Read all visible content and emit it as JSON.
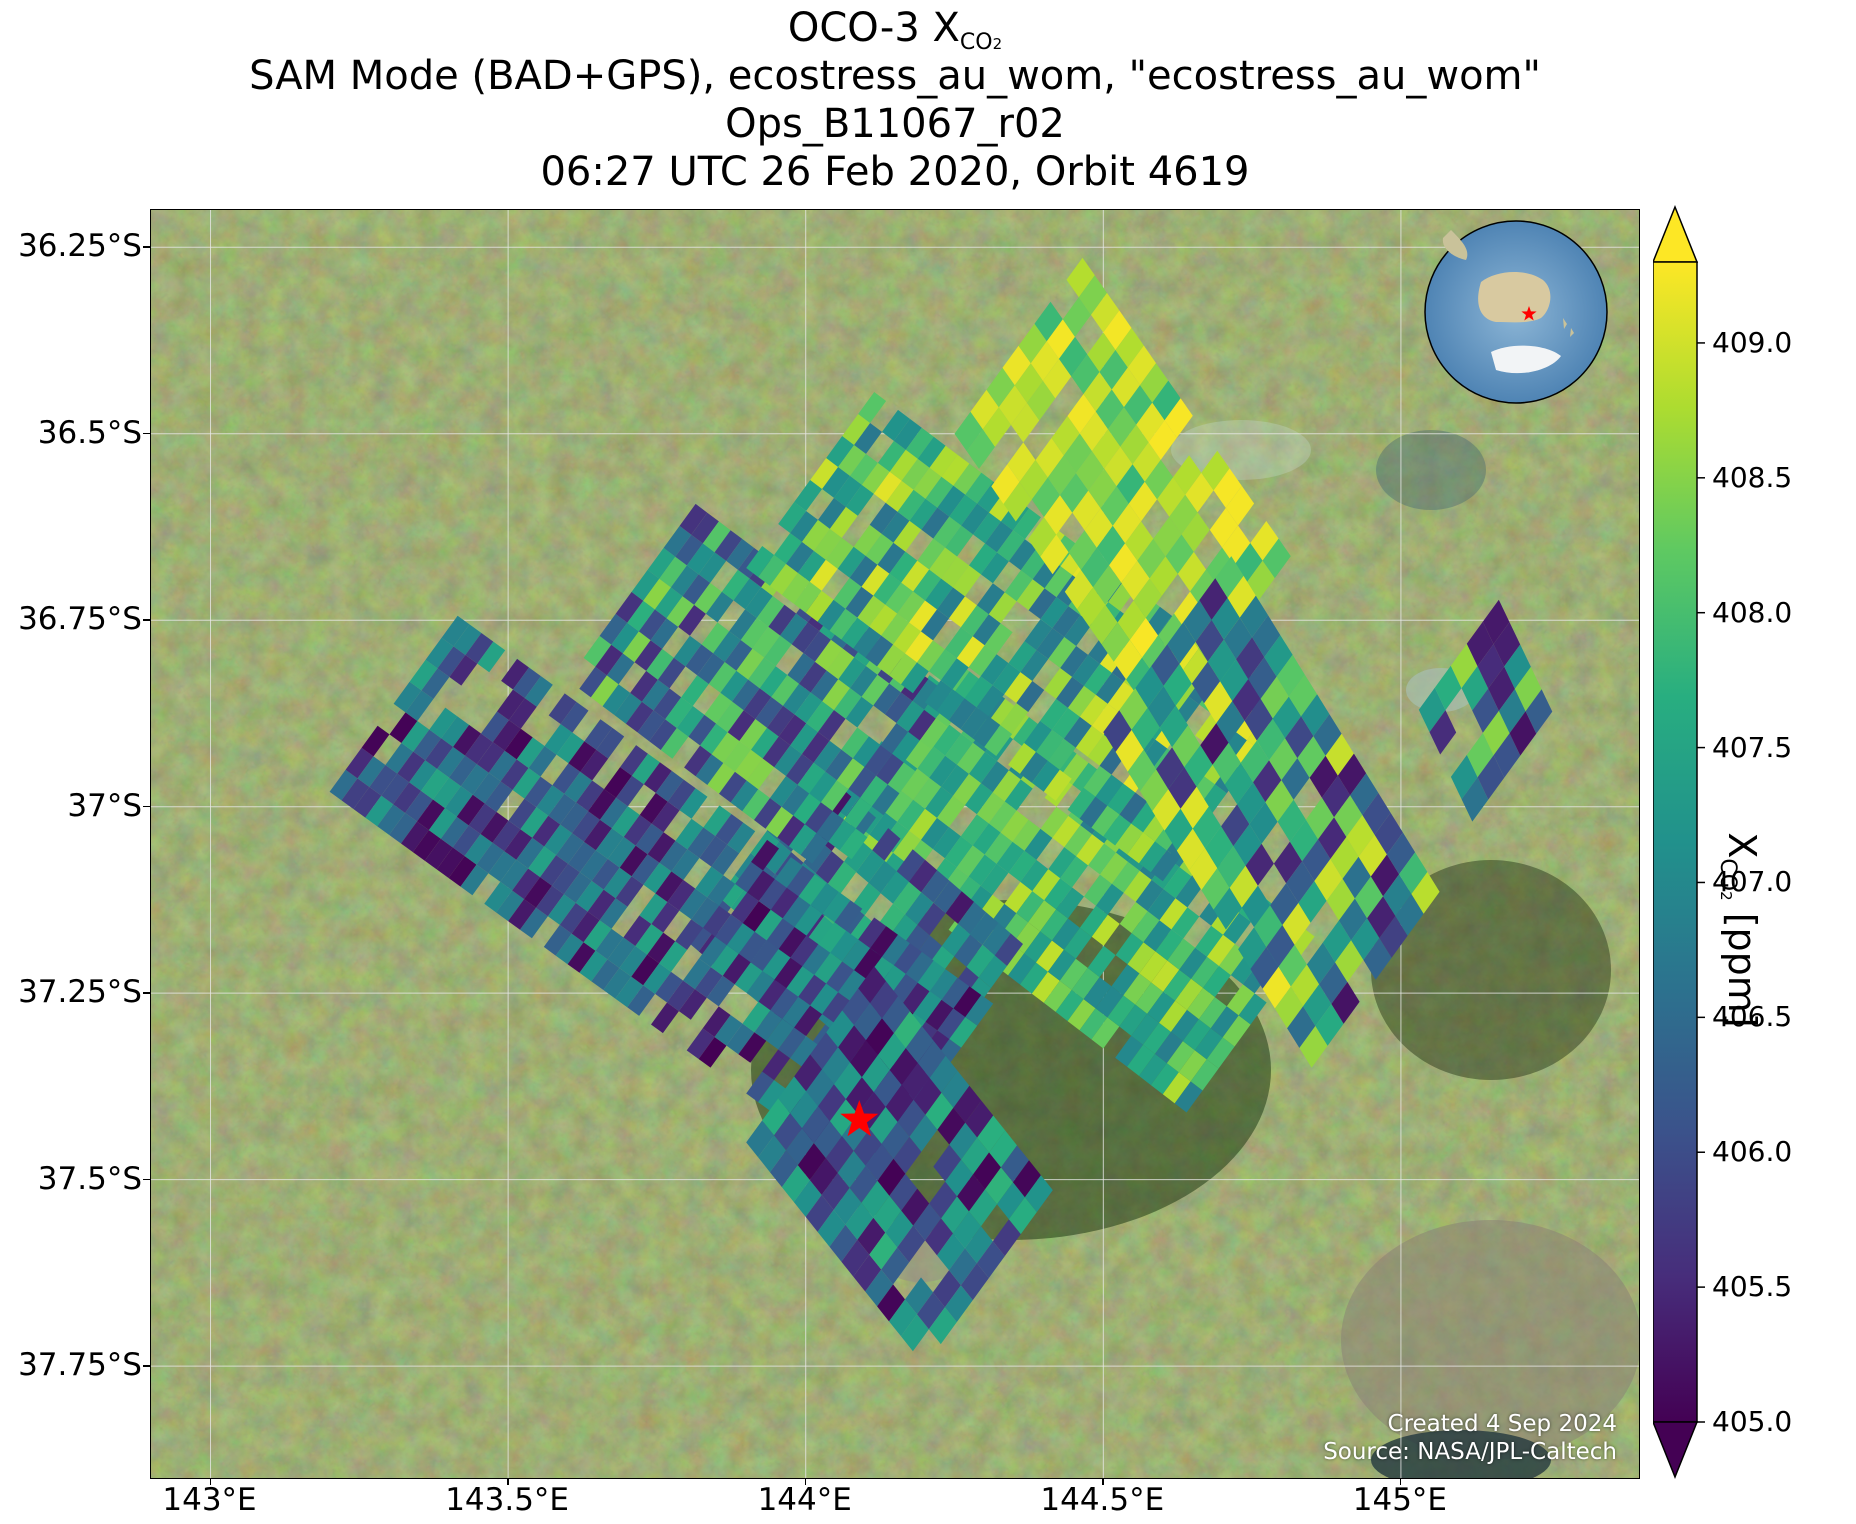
{
  "title": {
    "line1_prefix": "OCO-3 X",
    "line1_sub": "CO",
    "line1_sub2": "2",
    "line2": "SAM Mode (BAD+GPS), ecostress_au_wom, \"ecostress_au_wom\"",
    "line3": "Ops_B11067_r02",
    "line4": "06:27 UTC 26 Feb 2020, Orbit 4619"
  },
  "map": {
    "lon_range": [
      142.9,
      145.4
    ],
    "lat_range": [
      -37.9,
      -36.2
    ],
    "lon_ticks": [
      {
        "value": 143.0,
        "label": "143°E"
      },
      {
        "value": 143.5,
        "label": "143.5°E"
      },
      {
        "value": 144.0,
        "label": "144°E"
      },
      {
        "value": 144.5,
        "label": "144.5°E"
      },
      {
        "value": 145.0,
        "label": "145°E"
      }
    ],
    "lat_ticks": [
      {
        "value": -36.25,
        "label": "36.25°S"
      },
      {
        "value": -36.5,
        "label": "36.5°S"
      },
      {
        "value": -36.75,
        "label": "36.75°S"
      },
      {
        "value": -37.0,
        "label": "37°S"
      },
      {
        "value": -37.25,
        "label": "37.25°S"
      },
      {
        "value": -37.5,
        "label": "37.5°S"
      },
      {
        "value": -37.75,
        "label": "37.75°S"
      }
    ],
    "target_marker": {
      "lon": 144.09,
      "lat": -37.42,
      "color": "#ff0000",
      "shape": "star-icon"
    },
    "inset_globe": {
      "center_lon": 135,
      "center_lat": -30,
      "marker_color": "#ff0000"
    }
  },
  "chart_data": {
    "type": "heatmap",
    "variable": "XCO2",
    "units": "ppm",
    "color_range": [
      405.0,
      409.3
    ],
    "colormap": "viridis",
    "extend": "both",
    "swaths": [
      {
        "x0": 144.02,
        "y0": -37.03,
        "x1": 144.64,
        "y1": -37.41,
        "dx": 0.02,
        "dy": 0.035,
        "min": 406.8,
        "max": 408.9
      },
      {
        "x0": 143.8,
        "y0": -37.18,
        "x1": 144.15,
        "y1": -37.42,
        "dx": 0.02,
        "dy": 0.03,
        "min": 405.2,
        "max": 408.0
      },
      {
        "x0": 143.2,
        "y0": -36.98,
        "x1": 144.1,
        "y1": -37.5,
        "dx": 0.02,
        "dy": 0.025,
        "min": 405.0,
        "max": 407.6
      },
      {
        "x0": 143.9,
        "y0": -37.45,
        "x1": 144.2,
        "y1": -37.75,
        "dx": 0.02,
        "dy": 0.02,
        "min": 405.0,
        "max": 407.8
      },
      {
        "x0": 143.6,
        "y0": -36.83,
        "x1": 144.05,
        "y1": -37.1,
        "dx": 0.02,
        "dy": 0.025,
        "min": 405.5,
        "max": 408.6
      },
      {
        "x0": 143.9,
        "y0": -36.68,
        "x1": 144.6,
        "y1": -37.1,
        "dx": 0.02,
        "dy": 0.03,
        "min": 406.5,
        "max": 409.2
      },
      {
        "x0": 144.25,
        "y0": -36.5,
        "x1": 144.6,
        "y1": -36.9,
        "dx": 0.02,
        "dy": 0.03,
        "min": 407.8,
        "max": 409.3
      },
      {
        "x0": 144.5,
        "y0": -36.9,
        "x1": 144.85,
        "y1": -37.35,
        "dx": 0.02,
        "dy": 0.03,
        "min": 405.2,
        "max": 409.2
      },
      {
        "x0": 145.03,
        "y0": -36.87,
        "x1": 145.12,
        "y1": -37.02,
        "dx": 0.02,
        "dy": 0.03,
        "min": 405.2,
        "max": 408.8
      }
    ]
  },
  "colorbar": {
    "ticks": [
      "409.0",
      "408.5",
      "408.0",
      "407.5",
      "407.0",
      "406.5",
      "406.0",
      "405.5",
      "405.0"
    ],
    "label_prefix": "X",
    "label_sub": "CO",
    "label_sub2": "2",
    "label_suffix": " [ppm]"
  },
  "credit": {
    "line1": "Created 4 Sep 2024",
    "line2": "Source: NASA/JPL-Caltech"
  }
}
